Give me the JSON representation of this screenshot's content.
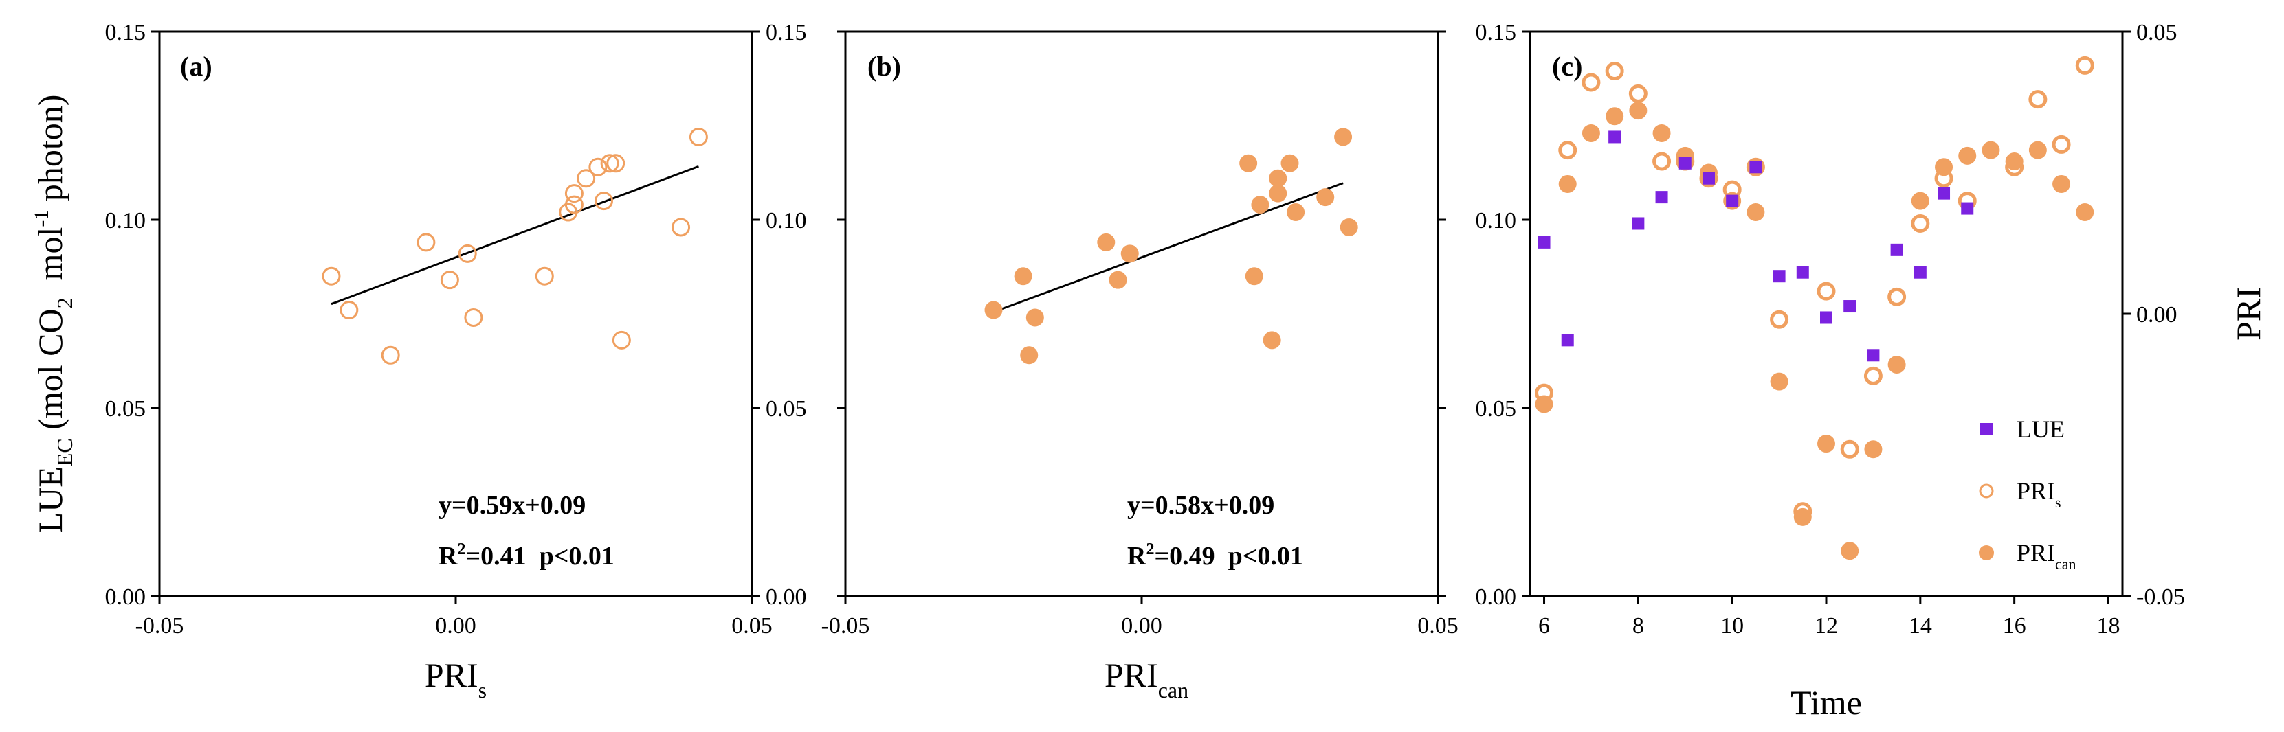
{
  "colors": {
    "orange": "#F0A060",
    "purple": "#7B22E0",
    "line": "#000000"
  },
  "chart_data": [
    {
      "panel": "(a)",
      "type": "scatter",
      "marker": "open-circle",
      "xlabel_main": "PRI",
      "xlabel_sub": "s",
      "ylabel_main": "LUE",
      "ylabel_sub": "EC",
      "ylabel_rest": " (mol CO",
      "ylabel_sub2": "2",
      "ylabel_mid": "  mol",
      "ylabel_sup": "-1",
      "ylabel_end": " photon)",
      "xlim": [
        -0.05,
        0.05
      ],
      "ylim": [
        0.0,
        0.15
      ],
      "xticks": [
        "-0.05",
        "0.00",
        "0.05"
      ],
      "yticks": [
        "0.00",
        "0.05",
        "0.10",
        "0.15"
      ],
      "points": [
        [
          -0.021,
          0.085
        ],
        [
          -0.018,
          0.076
        ],
        [
          -0.011,
          0.064
        ],
        [
          -0.005,
          0.094
        ],
        [
          -0.001,
          0.084
        ],
        [
          0.002,
          0.091
        ],
        [
          0.003,
          0.074
        ],
        [
          0.015,
          0.085
        ],
        [
          0.019,
          0.102
        ],
        [
          0.02,
          0.104
        ],
        [
          0.02,
          0.107
        ],
        [
          0.022,
          0.111
        ],
        [
          0.024,
          0.114
        ],
        [
          0.025,
          0.105
        ],
        [
          0.026,
          0.115
        ],
        [
          0.027,
          0.115
        ],
        [
          0.028,
          0.068
        ],
        [
          0.038,
          0.098
        ],
        [
          0.041,
          0.122
        ]
      ],
      "fit": {
        "slope": 0.59,
        "intercept": 0.09,
        "xrange": [
          -0.021,
          0.041
        ]
      },
      "equation": "y=0.59x+0.09",
      "r2_prefix": "R",
      "r2_sup": "2",
      "r2_text": "=0.41  p<0.01"
    },
    {
      "panel": "(b)",
      "type": "scatter",
      "marker": "filled-circle",
      "xlabel_main": "PRI",
      "xlabel_sub": "can",
      "xlim": [
        -0.05,
        0.05
      ],
      "ylim": [
        0.0,
        0.15
      ],
      "xticks": [
        "-0.05",
        "0.00",
        "0.05"
      ],
      "yticks": [
        "0.00",
        "0.05",
        "0.10",
        "0.15"
      ],
      "points": [
        [
          -0.025,
          0.076
        ],
        [
          -0.02,
          0.085
        ],
        [
          -0.019,
          0.064
        ],
        [
          -0.018,
          0.074
        ],
        [
          -0.006,
          0.094
        ],
        [
          -0.004,
          0.084
        ],
        [
          -0.002,
          0.091
        ],
        [
          0.018,
          0.115
        ],
        [
          0.019,
          0.085
        ],
        [
          0.02,
          0.104
        ],
        [
          0.022,
          0.068
        ],
        [
          0.023,
          0.107
        ],
        [
          0.023,
          0.111
        ],
        [
          0.025,
          0.115
        ],
        [
          0.026,
          0.102
        ],
        [
          0.031,
          0.106
        ],
        [
          0.034,
          0.122
        ],
        [
          0.035,
          0.098
        ]
      ],
      "fit": {
        "slope": 0.58,
        "intercept": 0.09,
        "xrange": [
          -0.025,
          0.034
        ]
      },
      "equation": "y=0.58x+0.09",
      "r2_prefix": "R",
      "r2_sup": "2",
      "r2_text": "=0.49  p<0.01"
    },
    {
      "panel": "(c)",
      "type": "scatter",
      "xlabel": "Time",
      "right_ylabel": "PRI",
      "xlim": [
        5.7,
        18.3
      ],
      "ylim": [
        0.0,
        0.15
      ],
      "y2lim": [
        -0.05,
        0.05
      ],
      "xticks": [
        "6",
        "8",
        "10",
        "12",
        "14",
        "16",
        "18"
      ],
      "yticks": [
        "0.00",
        "0.05",
        "0.10",
        "0.15"
      ],
      "y2ticks": [
        "-0.05",
        "0.00",
        "0.05"
      ],
      "series": [
        {
          "name": "LUE",
          "axis": "left",
          "marker": "square",
          "points": [
            [
              6.0,
              0.094
            ],
            [
              6.5,
              0.068
            ],
            [
              7.5,
              0.122
            ],
            [
              8.0,
              0.099
            ],
            [
              8.5,
              0.106
            ],
            [
              9.0,
              0.115
            ],
            [
              9.5,
              0.111
            ],
            [
              10.0,
              0.105
            ],
            [
              10.5,
              0.114
            ],
            [
              11.0,
              0.085
            ],
            [
              11.5,
              0.086
            ],
            [
              12.0,
              0.074
            ],
            [
              12.5,
              0.077
            ],
            [
              13.0,
              0.064
            ],
            [
              13.5,
              0.092
            ],
            [
              14.0,
              0.086
            ],
            [
              14.5,
              0.107
            ],
            [
              15.0,
              0.103
            ]
          ]
        },
        {
          "name": "PRI",
          "name_sub": "s",
          "axis": "right",
          "marker": "open-circle",
          "points": [
            [
              6.0,
              -0.014
            ],
            [
              6.5,
              0.029
            ],
            [
              7.0,
              0.041
            ],
            [
              7.5,
              0.043
            ],
            [
              8.0,
              0.039
            ],
            [
              8.5,
              0.027
            ],
            [
              9.0,
              0.027
            ],
            [
              9.5,
              0.024
            ],
            [
              10.0,
              0.022
            ],
            [
              10.5,
              0.026
            ],
            [
              11.0,
              -0.001
            ],
            [
              11.5,
              -0.035
            ],
            [
              12.0,
              0.004
            ],
            [
              12.5,
              -0.024
            ],
            [
              13.0,
              -0.011
            ],
            [
              13.5,
              0.003
            ],
            [
              14.0,
              0.016
            ],
            [
              14.5,
              0.024
            ],
            [
              15.0,
              0.02
            ],
            [
              16.0,
              0.026
            ],
            [
              16.5,
              0.038
            ],
            [
              17.0,
              0.03
            ],
            [
              17.5,
              0.044
            ]
          ]
        },
        {
          "name": "PRI",
          "name_sub": "can",
          "axis": "right",
          "marker": "filled-circle",
          "points": [
            [
              6.0,
              -0.016
            ],
            [
              6.5,
              0.023
            ],
            [
              7.0,
              0.032
            ],
            [
              7.5,
              0.035
            ],
            [
              8.0,
              0.036
            ],
            [
              8.5,
              0.032
            ],
            [
              9.0,
              0.028
            ],
            [
              9.5,
              0.025
            ],
            [
              10.0,
              0.02
            ],
            [
              10.5,
              0.018
            ],
            [
              11.0,
              -0.012
            ],
            [
              11.5,
              -0.036
            ],
            [
              12.0,
              -0.023
            ],
            [
              12.5,
              -0.042
            ],
            [
              13.0,
              -0.024
            ],
            [
              13.5,
              -0.009
            ],
            [
              14.0,
              0.02
            ],
            [
              14.5,
              0.026
            ],
            [
              15.0,
              0.028
            ],
            [
              15.5,
              0.029
            ],
            [
              16.0,
              0.027
            ],
            [
              16.5,
              0.029
            ],
            [
              17.0,
              0.023
            ],
            [
              17.5,
              0.018
            ]
          ]
        }
      ],
      "legend": "bottom-right"
    }
  ]
}
